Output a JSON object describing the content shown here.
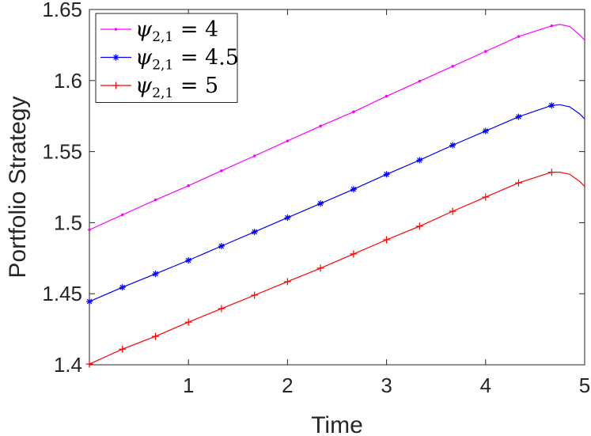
{
  "chart_data": {
    "type": "line",
    "xlabel": "Time",
    "ylabel": "Portfolio Strategy",
    "xlim": [
      0,
      5
    ],
    "ylim": [
      1.4,
      1.65
    ],
    "xticks": [
      1,
      2,
      3,
      4,
      5
    ],
    "xtick_labels": [
      "1",
      "2",
      "3",
      "4",
      "5"
    ],
    "yticks": [
      1.4,
      1.45,
      1.5,
      1.55,
      1.6,
      1.65
    ],
    "ytick_labels": [
      "1.4",
      "1.45",
      "1.5",
      "1.55",
      "1.6",
      "1.65"
    ],
    "grid": false,
    "legend_position": "top-left",
    "series": [
      {
        "name": "ψ2,1 = 4",
        "legend": {
          "symbol": "ψ",
          "sub": "2,1",
          "rest": " = 4"
        },
        "color": "#ff00ff",
        "marker": "point",
        "x": [
          0,
          0.333,
          0.667,
          1.0,
          1.333,
          1.667,
          2.0,
          2.333,
          2.667,
          3.0,
          3.333,
          3.667,
          4.0,
          4.333,
          4.667,
          4.75,
          4.85,
          4.95,
          5.0
        ],
        "y": [
          1.495,
          1.5055,
          1.516,
          1.526,
          1.5365,
          1.547,
          1.5575,
          1.568,
          1.578,
          1.589,
          1.5995,
          1.61,
          1.6205,
          1.631,
          1.6385,
          1.6395,
          1.638,
          1.632,
          1.6285
        ]
      },
      {
        "name": "ψ2,1 = 4.5",
        "legend": {
          "symbol": "ψ",
          "sub": "2,1",
          "rest": " = 4.5"
        },
        "color": "#0000ff",
        "marker": "asterisk",
        "x": [
          0,
          0.333,
          0.667,
          1.0,
          1.333,
          1.667,
          2.0,
          2.333,
          2.667,
          3.0,
          3.333,
          3.667,
          4.0,
          4.333,
          4.667,
          4.75,
          4.85,
          4.95,
          5.0
        ],
        "y": [
          1.4445,
          1.4545,
          1.464,
          1.4735,
          1.4835,
          1.4935,
          1.5035,
          1.5135,
          1.5235,
          1.534,
          1.544,
          1.5545,
          1.5645,
          1.5745,
          1.5825,
          1.583,
          1.5815,
          1.5765,
          1.573
        ]
      },
      {
        "name": "ψ2,1 = 5",
        "legend": {
          "symbol": "ψ",
          "sub": "2,1",
          "rest": " = 5"
        },
        "color": "#ff0000",
        "marker": "plus",
        "x": [
          0,
          0.333,
          0.667,
          1.0,
          1.333,
          1.667,
          2.0,
          2.333,
          2.667,
          3.0,
          3.333,
          3.667,
          4.0,
          4.333,
          4.667,
          4.75,
          4.85,
          4.95,
          5.0
        ],
        "y": [
          1.4005,
          1.411,
          1.42,
          1.43,
          1.4395,
          1.449,
          1.4585,
          1.468,
          1.478,
          1.488,
          1.4975,
          1.508,
          1.518,
          1.528,
          1.5355,
          1.5355,
          1.534,
          1.529,
          1.5255
        ]
      }
    ]
  }
}
